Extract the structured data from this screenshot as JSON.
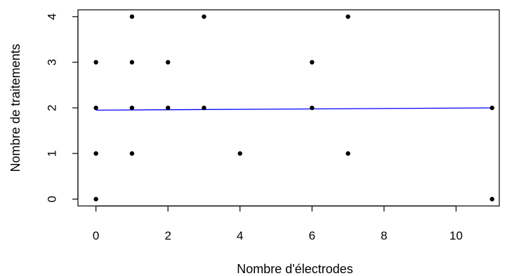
{
  "chart_data": {
    "type": "scatter",
    "title": "",
    "xlabel": "Nombre d'électrodes",
    "ylabel": "Nombre de traitements",
    "xlim": [
      -0.5,
      11.2
    ],
    "ylim": [
      -0.15,
      4.15
    ],
    "x_ticks": [
      0,
      2,
      4,
      6,
      8,
      10
    ],
    "y_ticks": [
      0,
      1,
      2,
      3,
      4
    ],
    "x_tick_labels": [
      "0",
      "2",
      "4",
      "6",
      "8",
      "10"
    ],
    "y_tick_labels": [
      "0",
      "1",
      "2",
      "3",
      "4"
    ],
    "grid": false,
    "legend": "none",
    "point_color": "#000000",
    "points": [
      {
        "x": 0,
        "y": 3
      },
      {
        "x": 0,
        "y": 2
      },
      {
        "x": 0,
        "y": 1
      },
      {
        "x": 0,
        "y": 0
      },
      {
        "x": 1,
        "y": 4
      },
      {
        "x": 1,
        "y": 3
      },
      {
        "x": 1,
        "y": 2
      },
      {
        "x": 1,
        "y": 1
      },
      {
        "x": 2,
        "y": 3
      },
      {
        "x": 2,
        "y": 2
      },
      {
        "x": 3,
        "y": 4
      },
      {
        "x": 3,
        "y": 2
      },
      {
        "x": 4,
        "y": 1
      },
      {
        "x": 6,
        "y": 3
      },
      {
        "x": 6,
        "y": 2
      },
      {
        "x": 7,
        "y": 4
      },
      {
        "x": 7,
        "y": 1
      },
      {
        "x": 11,
        "y": 2
      },
      {
        "x": 11,
        "y": 0
      }
    ],
    "trend_line": {
      "color": "#0000ff",
      "x": [
        0,
        11
      ],
      "y": [
        1.95,
        2.0
      ]
    }
  }
}
